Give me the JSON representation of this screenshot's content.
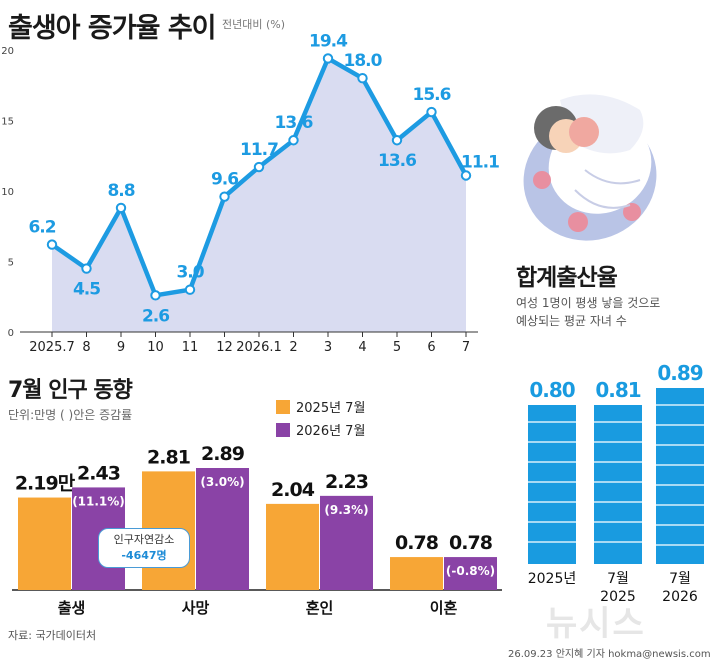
{
  "line_chart": {
    "title": "출생아 증가율 추이",
    "unit_note": "전년대비  (%)"
  },
  "birthrate": {
    "title": "합계출산율",
    "desc_line1": "여성 1명이 평생 낳을 것으로",
    "desc_line2": "예상되는 평균 자녀 수"
  },
  "population": {
    "title": "7월 인구 동향",
    "unit": "단위:만명 ( )안은  증감률",
    "callout_label": "인구자연감소",
    "callout_value": "-4647명",
    "source": "자료: 국가데이터처"
  },
  "footer": {
    "credit": "26.09.23 안지혜 기자 hokma@newsis.com",
    "watermark": "뉴시스"
  },
  "colors": {
    "line": "#1d9be2",
    "area": "#d9dcf1",
    "orange": "#f7a636",
    "purple": "#8a43a6",
    "blue_bar": "#199be0"
  },
  "chart_data": [
    {
      "type": "line",
      "title": "출생아 증가율 추이",
      "x": [
        "2025.7",
        "8",
        "9",
        "10",
        "11",
        "12",
        "2026.1",
        "2",
        "3",
        "4",
        "5",
        "6",
        "7"
      ],
      "y": [
        6.2,
        4.5,
        8.8,
        2.6,
        3.0,
        9.6,
        11.7,
        13.6,
        19.4,
        18.0,
        13.6,
        15.6,
        11.1
      ],
      "y_labels": [
        "6.2",
        "4.5",
        "8.8",
        "2.6",
        "3.0",
        "9.6",
        "11.7",
        "13.6",
        "19.4",
        "18.0",
        "13.6",
        "15.6",
        "11.1"
      ],
      "yticks": [
        0,
        5,
        10,
        15,
        20
      ],
      "ylim": [
        0,
        20
      ],
      "ylabel": "(%)",
      "grid": false
    },
    {
      "type": "bar",
      "title": "7월 인구 동향",
      "categories": [
        "출생",
        "사망",
        "혼인",
        "이혼"
      ],
      "series": [
        {
          "name": "2025년 7월",
          "values": [
            2.19,
            2.81,
            2.04,
            0.78
          ],
          "labels": [
            "2.19만",
            "2.81",
            "2.04",
            "0.78"
          ]
        },
        {
          "name": "2026년 7월",
          "values": [
            2.43,
            2.89,
            2.23,
            0.78
          ],
          "labels": [
            "2.43",
            "2.89",
            "2.23",
            "0.78"
          ],
          "change": [
            "(11.1%)",
            "(3.0%)",
            "(9.3%)",
            "(-0.8%)"
          ]
        }
      ],
      "legend": "top"
    },
    {
      "type": "bar",
      "title": "합계출산율",
      "categories": [
        "2025년",
        "7월\n2025",
        "7월\n2026"
      ],
      "values": [
        0.8,
        0.81,
        0.89
      ],
      "labels": [
        "0.80",
        "0.81",
        "0.89"
      ]
    }
  ]
}
